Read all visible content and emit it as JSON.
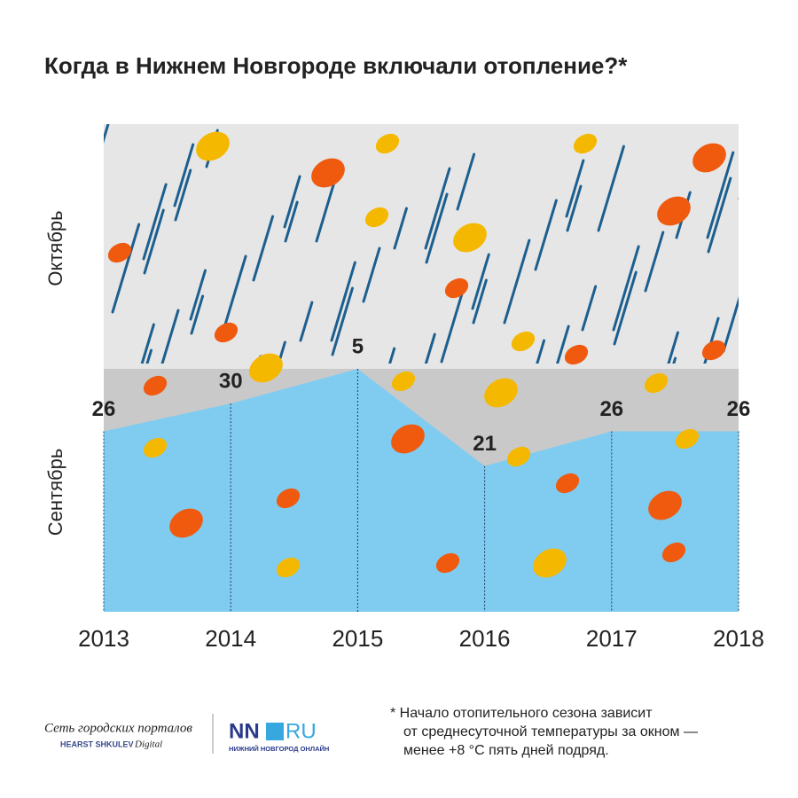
{
  "chart_data": {
    "type": "area",
    "title": "Когда в Нижнем Новгороде включали отопление?*",
    "bands": [
      "Сентябрь",
      "Октябрь"
    ],
    "categories": [
      "2013",
      "2014",
      "2015",
      "2016",
      "2017",
      "2018"
    ],
    "values": [
      26,
      30,
      5,
      21,
      26,
      26
    ],
    "months": [
      "Сентябрь",
      "Сентябрь",
      "Октябрь",
      "Сентябрь",
      "Сентябрь",
      "Сентябрь"
    ],
    "color": "#80ccf0",
    "ylim": [
      0,
      35
    ]
  },
  "footer": {
    "logo1_line1": "Сеть городских порталов",
    "logo1_line2": "HEARST SHKULEV",
    "logo1_line3": "Digital",
    "logo2_nn": "NN",
    "logo2_ru": "RU",
    "logo2_sub": "НИЖНИЙ НОВГОРОД ОНЛАЙН",
    "note": [
      "* Начало отопительного сезона зависит",
      "от среднесуточной температуры за окном —",
      "менее +8 °С пять дней подряд."
    ]
  }
}
